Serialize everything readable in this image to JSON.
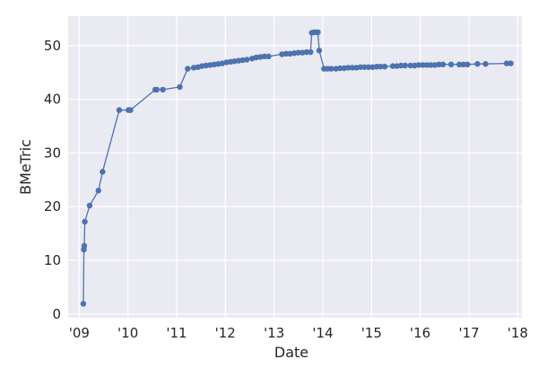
{
  "chart_data": {
    "type": "line",
    "title": "",
    "xlabel": "Date",
    "ylabel": "BMeTric",
    "xlim": [
      "2008-10-10",
      "2018-02-01"
    ],
    "ylim": [
      -0.7,
      55.5
    ],
    "grid": true,
    "legend": "none",
    "colors": {
      "series": "#4c72b0",
      "plot_bg": "#eaeaf2",
      "grid": "#ffffff"
    },
    "x_ticks": [
      {
        "date": "2009-01-01",
        "label": "'09"
      },
      {
        "date": "2010-01-01",
        "label": "'10"
      },
      {
        "date": "2011-01-01",
        "label": "'11"
      },
      {
        "date": "2012-01-01",
        "label": "'12"
      },
      {
        "date": "2013-01-01",
        "label": "'13"
      },
      {
        "date": "2014-01-01",
        "label": "'14"
      },
      {
        "date": "2015-01-01",
        "label": "'15"
      },
      {
        "date": "2016-01-01",
        "label": "'16"
      },
      {
        "date": "2017-01-01",
        "label": "'17"
      },
      {
        "date": "2018-01-01",
        "label": "'18"
      }
    ],
    "y_ticks": [
      {
        "value": 0,
        "label": "0"
      },
      {
        "value": 10,
        "label": "10"
      },
      {
        "value": 20,
        "label": "20"
      },
      {
        "value": 30,
        "label": "30"
      },
      {
        "value": 40,
        "label": "40"
      },
      {
        "value": 50,
        "label": "50"
      }
    ],
    "series": [
      {
        "x": [
          "2009-02-01",
          "2009-02-05",
          "2009-02-08",
          "2009-02-12",
          "2009-03-20",
          "2009-05-25",
          "2009-06-25",
          "2009-10-28",
          "2010-01-05",
          "2010-01-20",
          "2010-07-25",
          "2010-08-05",
          "2010-09-20",
          "2011-01-25",
          "2011-03-25",
          "2011-05-10",
          "2011-06-10",
          "2011-07-10",
          "2011-08-10",
          "2011-09-10",
          "2011-10-10",
          "2011-11-10",
          "2011-12-10",
          "2012-01-10",
          "2012-02-10",
          "2012-03-10",
          "2012-04-10",
          "2012-05-10",
          "2012-06-10",
          "2012-07-20",
          "2012-08-20",
          "2012-09-20",
          "2012-10-20",
          "2012-11-20",
          "2013-03-01",
          "2013-04-01",
          "2013-05-01",
          "2013-06-01",
          "2013-07-01",
          "2013-08-01",
          "2013-09-01",
          "2013-10-01",
          "2013-10-10",
          "2013-10-25",
          "2013-11-10",
          "2013-11-25",
          "2013-12-05",
          "2014-01-10",
          "2014-02-05",
          "2014-03-05",
          "2014-04-10",
          "2014-05-10",
          "2014-06-10",
          "2014-07-10",
          "2014-08-10",
          "2014-09-10",
          "2014-10-10",
          "2014-11-10",
          "2014-12-10",
          "2015-01-10",
          "2015-02-10",
          "2015-03-10",
          "2015-04-10",
          "2015-06-10",
          "2015-07-10",
          "2015-08-10",
          "2015-09-10",
          "2015-10-20",
          "2015-11-20",
          "2015-12-20",
          "2016-01-20",
          "2016-02-20",
          "2016-03-20",
          "2016-04-20",
          "2016-05-20",
          "2016-06-20",
          "2016-08-20",
          "2016-10-20",
          "2016-11-20",
          "2016-12-20",
          "2017-03-05",
          "2017-05-05",
          "2017-10-10",
          "2017-11-10"
        ],
        "values": [
          1.9,
          12.0,
          12.7,
          17.2,
          20.2,
          23.0,
          26.5,
          38.0,
          38.0,
          38.0,
          41.8,
          41.8,
          41.8,
          42.3,
          45.7,
          45.9,
          46.0,
          46.2,
          46.3,
          46.4,
          46.5,
          46.6,
          46.7,
          46.9,
          47.0,
          47.1,
          47.2,
          47.3,
          47.4,
          47.6,
          47.8,
          47.9,
          48.0,
          48.0,
          48.4,
          48.5,
          48.5,
          48.6,
          48.7,
          48.7,
          48.8,
          48.8,
          52.4,
          52.5,
          52.5,
          52.5,
          49.1,
          45.7,
          45.7,
          45.7,
          45.7,
          45.8,
          45.8,
          45.9,
          45.9,
          45.9,
          46.0,
          46.0,
          46.0,
          46.0,
          46.1,
          46.1,
          46.1,
          46.2,
          46.2,
          46.3,
          46.3,
          46.3,
          46.3,
          46.4,
          46.4,
          46.4,
          46.4,
          46.4,
          46.5,
          46.5,
          46.5,
          46.5,
          46.5,
          46.5,
          46.6,
          46.6,
          46.7,
          46.7
        ]
      }
    ]
  }
}
